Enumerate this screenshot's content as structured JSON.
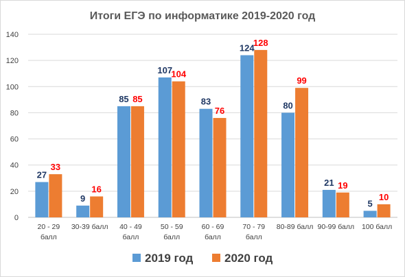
{
  "chart_data": {
    "type": "bar",
    "title": "Итоги ЕГЭ по информатике 2019-2020 год",
    "categories": [
      [
        "20 - 29",
        "балл"
      ],
      [
        "30-39 балл"
      ],
      [
        "40 - 49",
        "балл"
      ],
      [
        "50 - 59",
        "балл"
      ],
      [
        "60 - 69",
        "балл"
      ],
      [
        "70 - 79",
        "балл"
      ],
      [
        "80-89 балл"
      ],
      [
        "90-99 балл"
      ],
      [
        "100 балл"
      ]
    ],
    "series": [
      {
        "name": "2019 год",
        "values": [
          27,
          9,
          85,
          107,
          83,
          124,
          80,
          21,
          5
        ],
        "color": "#5b9bd5",
        "label_color": "#1f3864"
      },
      {
        "name": "2020 год",
        "values": [
          33,
          16,
          85,
          104,
          76,
          128,
          99,
          19,
          10
        ],
        "color": "#ed7d31",
        "label_color": "#ff0000"
      }
    ],
    "ylim": [
      0,
      140
    ],
    "yticks": [
      0,
      20,
      40,
      60,
      80,
      100,
      120,
      140
    ],
    "grid": true,
    "legend": "bottom"
  }
}
